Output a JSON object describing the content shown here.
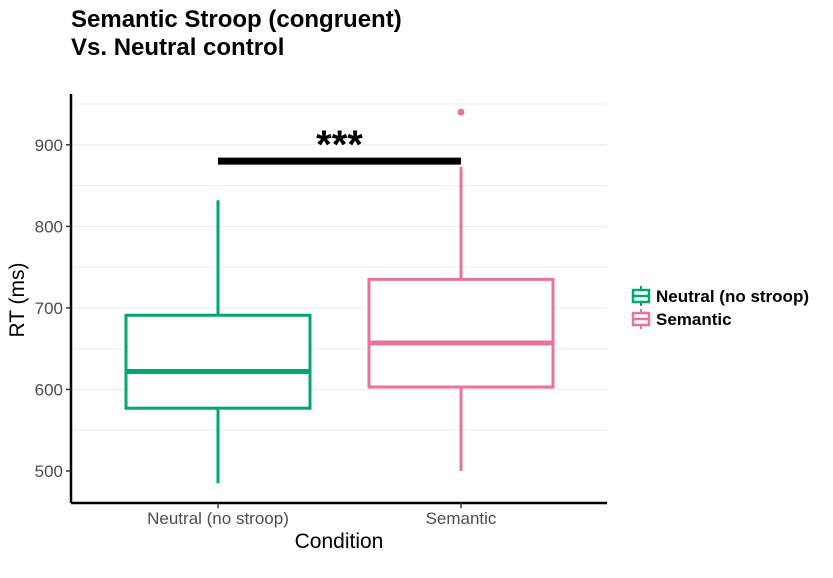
{
  "title_line1": "Semantic Stroop (congruent)",
  "title_line2": "Vs. Neutral control",
  "chart_data": {
    "type": "box",
    "xlabel": "Condition",
    "ylabel": "RT (ms)",
    "ylim": [
      460,
      960
    ],
    "yticks": [
      500,
      600,
      700,
      800,
      900
    ],
    "grid": "horizontal major and minor, light",
    "legend_position": "right",
    "categories": [
      "Neutral (no stroop)",
      "Semantic"
    ],
    "boxes": [
      {
        "name": "Neutral (no stroop)",
        "color": "#00a86b",
        "min": 485,
        "q1": 577,
        "median": 622,
        "q3": 691,
        "max": 832,
        "outliers": []
      },
      {
        "name": "Semantic",
        "color": "#e8739e",
        "min": 500,
        "q1": 603,
        "median": 657,
        "q3": 735,
        "max": 873,
        "outliers": [
          940
        ]
      }
    ],
    "significance": {
      "label": "***",
      "y": 880,
      "from": "Neutral (no stroop)",
      "to": "Semantic"
    }
  }
}
